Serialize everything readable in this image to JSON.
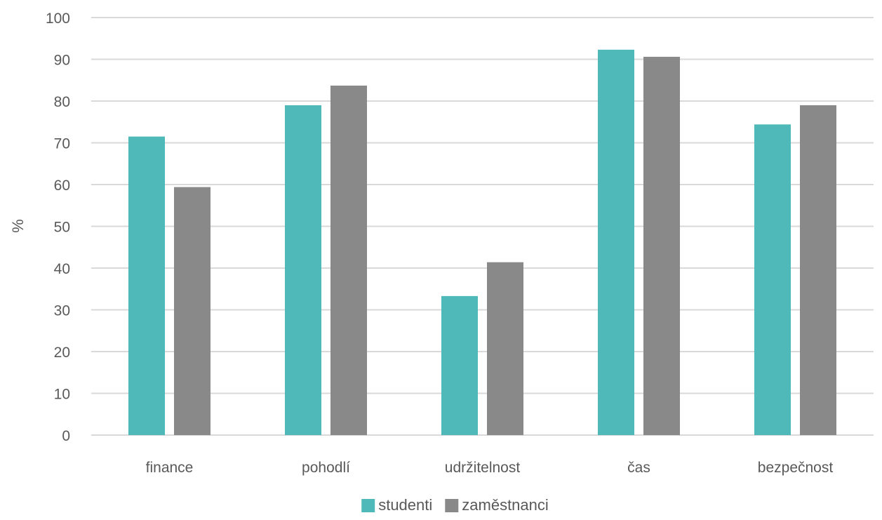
{
  "chart_data": {
    "type": "bar",
    "title": "",
    "xlabel": "",
    "ylabel": "%",
    "ylim": [
      0,
      100
    ],
    "yticks": [
      0,
      10,
      20,
      30,
      40,
      50,
      60,
      70,
      80,
      90,
      100
    ],
    "grid": true,
    "legend_position": "bottom",
    "categories": [
      "finance",
      "pohodlí",
      "udržitelnost",
      "čas",
      "bezpečnost"
    ],
    "series": [
      {
        "name": "studenti",
        "color": "#4fb9b9",
        "values": [
          71.5,
          79,
          33.3,
          92.3,
          74.4
        ]
      },
      {
        "name": "zaměstnanci",
        "color": "#898989",
        "values": [
          59.4,
          83.7,
          41.4,
          90.6,
          79
        ]
      }
    ]
  }
}
